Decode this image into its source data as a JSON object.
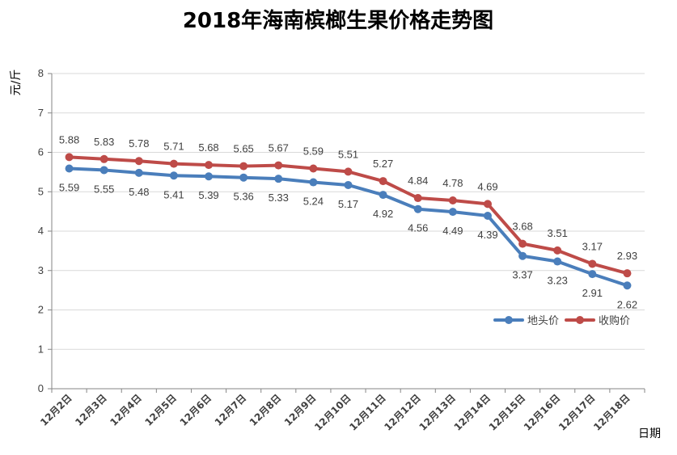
{
  "chart_data": {
    "type": "line",
    "title": "2018年海南槟榔生果价格走势图",
    "xlabel": "日期",
    "ylabel": "元/斤",
    "ylim": [
      0,
      8
    ],
    "yticks": [
      0,
      1,
      2,
      3,
      4,
      5,
      6,
      7,
      8
    ],
    "grid": true,
    "legend_position": "right",
    "categories": [
      "12月2日",
      "12月3日",
      "12月4日",
      "12月5日",
      "12月6日",
      "12月7日",
      "12月8日",
      "12月9日",
      "12月10日",
      "12月11日",
      "12月12日",
      "12月13日",
      "12月14日",
      "12月15日",
      "12月16日",
      "12月17日",
      "12月18日"
    ],
    "series": [
      {
        "name": "地头价",
        "color": "#4a7ebb",
        "values": [
          5.59,
          5.55,
          5.48,
          5.41,
          5.39,
          5.36,
          5.33,
          5.24,
          5.17,
          4.92,
          4.56,
          4.49,
          4.39,
          3.37,
          3.23,
          2.91,
          2.62
        ]
      },
      {
        "name": "收购价",
        "color": "#be4b48",
        "values": [
          5.88,
          5.83,
          5.78,
          5.71,
          5.68,
          5.65,
          5.67,
          5.59,
          5.51,
          5.27,
          4.84,
          4.78,
          4.69,
          3.68,
          3.51,
          3.17,
          2.93
        ]
      }
    ]
  }
}
